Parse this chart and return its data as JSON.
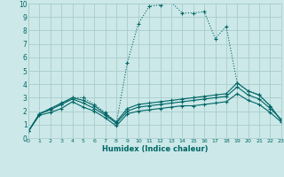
{
  "bg_color": "#cce8e8",
  "grid_color": "#aacccc",
  "line_color": "#006666",
  "xlabel": "Humidex (Indice chaleur)",
  "xlim": [
    0,
    23
  ],
  "ylim": [
    0,
    10
  ],
  "xticks": [
    0,
    1,
    2,
    3,
    4,
    5,
    6,
    7,
    8,
    9,
    10,
    11,
    12,
    13,
    14,
    15,
    16,
    17,
    18,
    19,
    20,
    21,
    22,
    23
  ],
  "yticks": [
    0,
    1,
    2,
    3,
    4,
    5,
    6,
    7,
    8,
    9,
    10
  ],
  "series": [
    {
      "x": [
        0,
        1,
        2,
        3,
        4,
        5,
        6,
        7,
        8,
        9,
        10,
        11,
        12,
        13,
        14,
        15,
        16,
        17,
        18,
        19,
        20,
        21,
        22,
        23
      ],
      "y": [
        0.5,
        1.8,
        2.2,
        2.5,
        3.0,
        3.0,
        2.5,
        1.9,
        1.1,
        5.6,
        8.5,
        9.8,
        9.9,
        10.1,
        9.3,
        9.3,
        9.4,
        7.4,
        8.3,
        4.1,
        3.5,
        3.2,
        2.4,
        1.3
      ],
      "style": "dotted"
    },
    {
      "x": [
        0,
        1,
        2,
        3,
        4,
        5,
        6,
        7,
        8,
        9,
        10,
        11,
        12,
        13,
        14,
        15,
        16,
        17,
        18,
        19,
        20,
        21,
        22,
        23
      ],
      "y": [
        0.5,
        1.8,
        2.2,
        2.6,
        3.0,
        2.8,
        2.4,
        1.8,
        1.2,
        2.2,
        2.5,
        2.6,
        2.7,
        2.8,
        2.9,
        3.0,
        3.1,
        3.2,
        3.3,
        4.1,
        3.5,
        3.2,
        2.4,
        1.3
      ],
      "style": "solid"
    },
    {
      "x": [
        0,
        1,
        2,
        3,
        4,
        5,
        6,
        7,
        8,
        9,
        10,
        11,
        12,
        13,
        14,
        15,
        16,
        17,
        18,
        19,
        20,
        21,
        22,
        23
      ],
      "y": [
        0.5,
        1.8,
        2.1,
        2.5,
        2.9,
        2.6,
        2.2,
        1.7,
        1.1,
        2.0,
        2.3,
        2.4,
        2.5,
        2.6,
        2.7,
        2.8,
        2.9,
        3.0,
        3.1,
        3.8,
        3.2,
        2.9,
        2.2,
        1.4
      ],
      "style": "solid"
    },
    {
      "x": [
        0,
        1,
        2,
        3,
        4,
        5,
        6,
        7,
        8,
        9,
        10,
        11,
        12,
        13,
        14,
        15,
        16,
        17,
        18,
        19,
        20,
        21,
        22,
        23
      ],
      "y": [
        0.5,
        1.7,
        1.9,
        2.2,
        2.7,
        2.3,
        2.0,
        1.5,
        0.9,
        1.8,
        2.0,
        2.1,
        2.2,
        2.3,
        2.4,
        2.4,
        2.5,
        2.6,
        2.7,
        3.3,
        2.8,
        2.5,
        1.9,
        1.2
      ],
      "style": "solid"
    }
  ]
}
